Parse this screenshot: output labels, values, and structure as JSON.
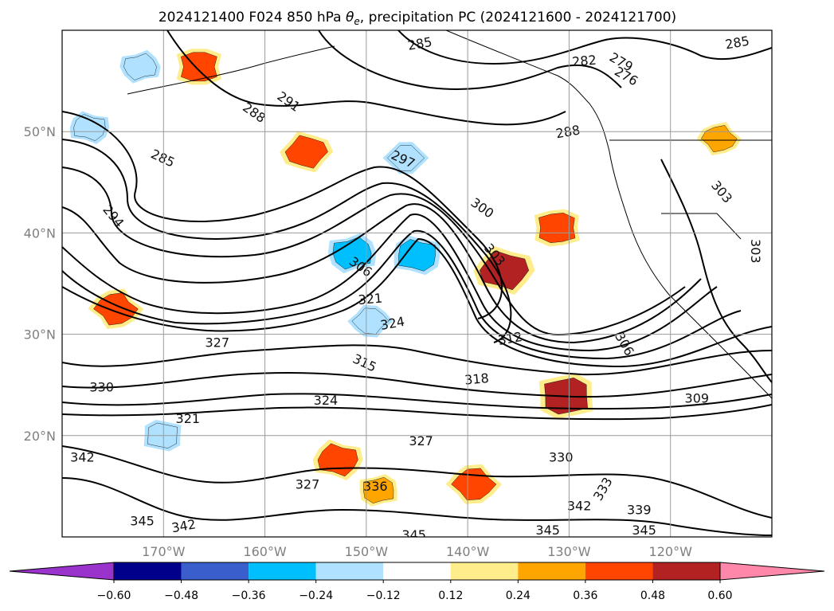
{
  "chart_data": {
    "type": "map-contour",
    "title": "2024121400 F024 850 hPa θe, precipitation PC (2024121600 - 2024121700)",
    "title_parts": {
      "prefix": "2024121400 F024 850 hPa ",
      "symbol": "θ",
      "subscript": "e",
      "suffix": ", precipitation PC (2024121600 - 2024121700)"
    },
    "lon_ticks": [
      {
        "value": -170,
        "label": "170°W"
      },
      {
        "value": -160,
        "label": "160°W"
      },
      {
        "value": -150,
        "label": "150°W"
      },
      {
        "value": -140,
        "label": "140°W"
      },
      {
        "value": -130,
        "label": "130°W"
      },
      {
        "value": -120,
        "label": "120°W"
      }
    ],
    "lat_ticks": [
      {
        "value": 20,
        "label": "20°N"
      },
      {
        "value": 30,
        "label": "30°N"
      },
      {
        "value": 40,
        "label": "40°N"
      },
      {
        "value": 50,
        "label": "50°N"
      }
    ],
    "extent": {
      "lon_min": -180,
      "lon_max": -110,
      "lat_min": 10,
      "lat_max": 60
    },
    "grid": true,
    "colorbar": {
      "orientation": "horizontal",
      "extend": "both",
      "levels": [
        -0.6,
        -0.48,
        -0.36,
        -0.24,
        -0.12,
        0.12,
        0.24,
        0.36,
        0.48,
        0.6
      ],
      "tick_labels": [
        "−0.60",
        "−0.48",
        "−0.36",
        "−0.24",
        "−0.12",
        "0.12",
        "0.24",
        "0.36",
        "0.48",
        "0.60"
      ],
      "colors": [
        "#9933cc",
        "#00008b",
        "#3a5fcd",
        "#00bfff",
        "#b0e2ff",
        "#ffffff",
        "#ffec8b",
        "#ffa500",
        "#ff4500",
        "#b22222",
        "#ff88aa"
      ]
    },
    "contour_labels": [
      {
        "text": "285",
        "lon": -144.7,
        "lat": 58.6,
        "angle": -10
      },
      {
        "text": "282",
        "lon": -128.5,
        "lat": 56.9,
        "angle": -5
      },
      {
        "text": "279",
        "lon": -124.9,
        "lat": 56.8,
        "angle": 30
      },
      {
        "text": "276",
        "lon": -124.4,
        "lat": 55.4,
        "angle": 30
      },
      {
        "text": "285",
        "lon": -113.4,
        "lat": 58.7,
        "angle": -10
      },
      {
        "text": "288",
        "lon": -161.1,
        "lat": 51.8,
        "angle": 35
      },
      {
        "text": "291",
        "lon": -157.7,
        "lat": 52.9,
        "angle": 35
      },
      {
        "text": "288",
        "lon": -130.1,
        "lat": 49.9,
        "angle": -10
      },
      {
        "text": "285",
        "lon": -170.1,
        "lat": 47.3,
        "angle": 25
      },
      {
        "text": "297",
        "lon": -146.4,
        "lat": 47.2,
        "angle": 25
      },
      {
        "text": "294",
        "lon": -175.0,
        "lat": 41.6,
        "angle": 50
      },
      {
        "text": "300",
        "lon": -138.6,
        "lat": 42.4,
        "angle": 35
      },
      {
        "text": "303",
        "lon": -115.0,
        "lat": 44.0,
        "angle": 50
      },
      {
        "text": "303",
        "lon": -137.4,
        "lat": 37.8,
        "angle": 50
      },
      {
        "text": "303",
        "lon": -111.7,
        "lat": 38.2,
        "angle": 90
      },
      {
        "text": "306",
        "lon": -150.6,
        "lat": 36.6,
        "angle": 35
      },
      {
        "text": "321",
        "lon": -149.6,
        "lat": 33.4,
        "angle": -5
      },
      {
        "text": "324",
        "lon": -147.4,
        "lat": 31.0,
        "angle": -10
      },
      {
        "text": "327",
        "lon": -164.7,
        "lat": 29.1,
        "angle": 0
      },
      {
        "text": "312",
        "lon": -135.8,
        "lat": 29.5,
        "angle": -10
      },
      {
        "text": "306",
        "lon": -124.6,
        "lat": 29.0,
        "angle": 60
      },
      {
        "text": "315",
        "lon": -150.2,
        "lat": 27.1,
        "angle": 25
      },
      {
        "text": "318",
        "lon": -139.1,
        "lat": 25.5,
        "angle": -5
      },
      {
        "text": "330",
        "lon": -176.1,
        "lat": 24.7,
        "angle": 0
      },
      {
        "text": "324",
        "lon": -154.0,
        "lat": 23.4,
        "angle": 0
      },
      {
        "text": "309",
        "lon": -117.4,
        "lat": 23.6,
        "angle": 0
      },
      {
        "text": "321",
        "lon": -167.6,
        "lat": 21.6,
        "angle": 0
      },
      {
        "text": "327",
        "lon": -144.6,
        "lat": 19.4,
        "angle": 0
      },
      {
        "text": "342",
        "lon": -178.0,
        "lat": 17.8,
        "angle": 0
      },
      {
        "text": "330",
        "lon": -130.8,
        "lat": 17.8,
        "angle": 0
      },
      {
        "text": "327",
        "lon": -155.8,
        "lat": 15.1,
        "angle": 0
      },
      {
        "text": "336",
        "lon": -149.1,
        "lat": 14.9,
        "angle": 0
      },
      {
        "text": "333",
        "lon": -126.6,
        "lat": 14.7,
        "angle": -60
      },
      {
        "text": "342",
        "lon": -129.0,
        "lat": 13.0,
        "angle": 0
      },
      {
        "text": "339",
        "lon": -123.1,
        "lat": 12.6,
        "angle": 0
      },
      {
        "text": "345",
        "lon": -172.1,
        "lat": 11.5,
        "angle": 0
      },
      {
        "text": "342",
        "lon": -168.0,
        "lat": 11.0,
        "angle": -10
      },
      {
        "text": "345",
        "lon": -145.3,
        "lat": 10.1,
        "angle": 0
      },
      {
        "text": "345",
        "lon": -132.1,
        "lat": 10.6,
        "angle": 0
      },
      {
        "text": "345",
        "lon": -122.6,
        "lat": 10.6,
        "angle": 0
      }
    ],
    "precip_patches": [
      {
        "level": 0.36,
        "lon": -166.5,
        "lat": 56.4
      },
      {
        "level": 0.36,
        "lon": -155.9,
        "lat": 48.0
      },
      {
        "level": 0.24,
        "lon": -115.2,
        "lat": 49.3
      },
      {
        "level": 0.36,
        "lon": -131.2,
        "lat": 40.5
      },
      {
        "level": 0.48,
        "lon": -136.4,
        "lat": 36.3
      },
      {
        "level": 0.36,
        "lon": -174.7,
        "lat": 32.5
      },
      {
        "level": 0.48,
        "lon": -130.3,
        "lat": 23.9
      },
      {
        "level": 0.36,
        "lon": -152.8,
        "lat": 17.6
      },
      {
        "level": 0.36,
        "lon": -139.4,
        "lat": 15.2
      },
      {
        "level": 0.24,
        "lon": -148.8,
        "lat": 14.6
      },
      {
        "level": -0.24,
        "lon": -177.3,
        "lat": 50.4
      },
      {
        "level": -0.24,
        "lon": -146.1,
        "lat": 47.4
      },
      {
        "level": -0.36,
        "lon": -151.4,
        "lat": 38.0
      },
      {
        "level": -0.36,
        "lon": -145.0,
        "lat": 37.8
      },
      {
        "level": -0.24,
        "lon": -149.6,
        "lat": 31.3
      },
      {
        "level": -0.24,
        "lon": -172.3,
        "lat": 56.4
      },
      {
        "level": -0.24,
        "lon": -170.1,
        "lat": 20.0
      }
    ]
  }
}
